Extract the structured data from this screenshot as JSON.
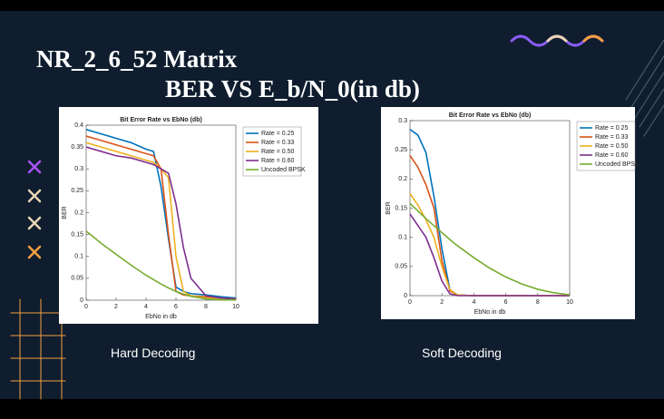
{
  "slide": {
    "title": "NR_2_6_52   Matrix",
    "subtitle": "BER VS E_b/N_0(in db)",
    "captions": [
      "Hard Decoding",
      "Soft Decoding"
    ]
  },
  "chart_data": [
    {
      "type": "line",
      "title": "Bit Error Rate vs EbNo (db)",
      "x_label": "EbNo in db",
      "y_label": "BER",
      "x": [
        0,
        1,
        2,
        3,
        4,
        4.5,
        5,
        5.5,
        6,
        6.5,
        7,
        8,
        9,
        10
      ],
      "xlim": [
        0,
        10
      ],
      "xticks": [
        0,
        2,
        4,
        6,
        8,
        10
      ],
      "ylim": [
        0,
        0.4
      ],
      "yticks": [
        0,
        0.05,
        0.1,
        0.15,
        0.2,
        0.25,
        0.3,
        0.35,
        0.4
      ],
      "legend": "upper right",
      "grid": false,
      "series": [
        {
          "name": "Rate = 0.25",
          "color": "#0072bd",
          "values": [
            0.39,
            0.38,
            0.37,
            0.36,
            0.345,
            0.34,
            0.26,
            0.14,
            0.03,
            0.02,
            0.015,
            0.012,
            0.008,
            0.005
          ]
        },
        {
          "name": "Rate = 0.33",
          "color": "#d95319",
          "values": [
            0.375,
            0.365,
            0.355,
            0.345,
            0.335,
            0.33,
            0.3,
            0.15,
            0.02,
            0.012,
            0.01,
            0.008,
            0.005,
            0.003
          ]
        },
        {
          "name": "Rate = 0.50",
          "color": "#edb120",
          "values": [
            0.36,
            0.35,
            0.34,
            0.33,
            0.32,
            0.315,
            0.3,
            0.28,
            0.1,
            0.02,
            0.01,
            0.005,
            0.003,
            0.002
          ]
        },
        {
          "name": "Rate = 0.60",
          "color": "#7e2f8e",
          "values": [
            0.35,
            0.34,
            0.33,
            0.325,
            0.315,
            0.31,
            0.3,
            0.29,
            0.22,
            0.12,
            0.05,
            0.01,
            0.005,
            0.002
          ]
        },
        {
          "name": "Uncoded BPSK",
          "color": "#77ac30",
          "values": [
            0.158,
            0.13,
            0.105,
            0.08,
            0.057,
            0.047,
            0.037,
            0.028,
            0.02,
            0.014,
            0.009,
            0.003,
            0.001,
            0.0003
          ]
        }
      ]
    },
    {
      "type": "line",
      "title": "Bit Error Rate vs EbNo (db)",
      "x_label": "EbNo in db",
      "y_label": "BER",
      "x": [
        0,
        0.5,
        1,
        1.5,
        2,
        2.5,
        3,
        4,
        5,
        6,
        7,
        8,
        9,
        10
      ],
      "xlim": [
        0,
        10
      ],
      "xticks": [
        0,
        2,
        4,
        6,
        8,
        10
      ],
      "ylim": [
        0,
        0.3
      ],
      "yticks": [
        0,
        0.05,
        0.1,
        0.15,
        0.2,
        0.25,
        0.3
      ],
      "legend": "upper right",
      "grid": false,
      "series": [
        {
          "name": "Rate = 0.25",
          "color": "#0072bd",
          "values": [
            0.285,
            0.275,
            0.245,
            0.17,
            0.08,
            0.01,
            0.001,
            0,
            0,
            0,
            0,
            0,
            0,
            0
          ]
        },
        {
          "name": "Rate = 0.33",
          "color": "#d95319",
          "values": [
            0.24,
            0.22,
            0.19,
            0.15,
            0.06,
            0.008,
            0.001,
            0,
            0,
            0,
            0,
            0,
            0,
            0
          ]
        },
        {
          "name": "Rate = 0.50",
          "color": "#edb120",
          "values": [
            0.175,
            0.155,
            0.13,
            0.1,
            0.05,
            0.01,
            0.001,
            0,
            0,
            0,
            0,
            0,
            0,
            0
          ]
        },
        {
          "name": "Rate = 0.60",
          "color": "#7e2f8e",
          "values": [
            0.14,
            0.12,
            0.1,
            0.065,
            0.025,
            0.003,
            0,
            0,
            0,
            0,
            0,
            0,
            0,
            0
          ]
        },
        {
          "name": "Uncoded BPSK",
          "color": "#77ac30",
          "values": [
            0.158,
            0.145,
            0.132,
            0.12,
            0.108,
            0.096,
            0.085,
            0.065,
            0.047,
            0.032,
            0.02,
            0.011,
            0.005,
            0.0015
          ]
        }
      ]
    }
  ]
}
